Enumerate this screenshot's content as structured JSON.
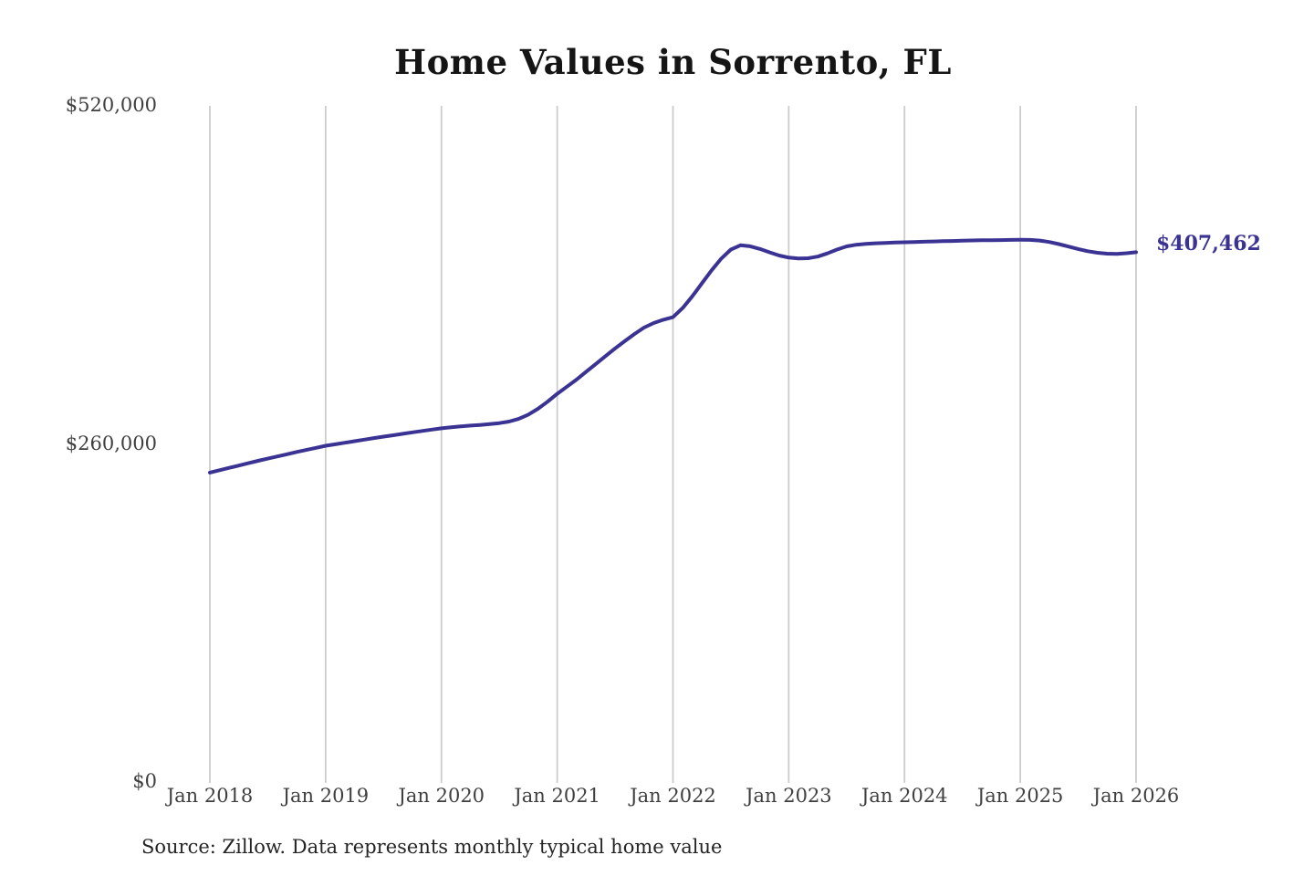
{
  "title": "Home Values in Sorrento, FL",
  "source_note": "Source: Zillow. Data represents monthly typical home value",
  "colors": {
    "line": "#3a3393",
    "grid": "#cccccc",
    "tick_text": "#3f3f3f",
    "title_text": "#151515",
    "end_label": "#3a3393",
    "background": "#ffffff"
  },
  "chart_data": {
    "type": "line",
    "title": "Home Values in Sorrento, FL",
    "xlabel": "",
    "ylabel": "",
    "frequency": "monthly",
    "x_start": "Jan 2018",
    "x_end": "Jan 2026",
    "x_tick_labels": [
      "Jan 2018",
      "Jan 2019",
      "Jan 2020",
      "Jan 2021",
      "Jan 2022",
      "Jan 2023",
      "Jan 2024",
      "Jan 2025",
      "Jan 2026"
    ],
    "y_ticks": [
      {
        "label": "$520,000",
        "value": 520000
      },
      {
        "label": "$260,000",
        "value": 260000
      },
      {
        "label": "$0",
        "value": 0
      }
    ],
    "ylim": [
      0,
      520000
    ],
    "grid": "vertical-only",
    "legend": "none",
    "end_label": "$407,462",
    "end_value": 407462,
    "series": [
      {
        "name": "Typical home value",
        "values": [
          238000,
          239800,
          241600,
          243400,
          245200,
          247000,
          248700,
          250400,
          252100,
          253800,
          255400,
          257000,
          258600,
          259700,
          260900,
          262100,
          263300,
          264500,
          265600,
          266700,
          267800,
          268900,
          270000,
          271000,
          272000,
          272800,
          273500,
          274100,
          274600,
          275200,
          276000,
          277200,
          279200,
          282500,
          287000,
          292500,
          298500,
          304000,
          309500,
          315500,
          321500,
          327500,
          333500,
          339000,
          344500,
          349500,
          353000,
          355500,
          357500,
          364500,
          373500,
          383500,
          393500,
          402500,
          409500,
          412800,
          412000,
          410000,
          407400,
          404900,
          403300,
          402600,
          402800,
          404100,
          406500,
          409500,
          411900,
          413200,
          413800,
          414300,
          414600,
          414900,
          415100,
          415300,
          415500,
          415700,
          415900,
          416100,
          416300,
          416500,
          416600,
          416700,
          416800,
          416900,
          417000,
          416900,
          416400,
          415300,
          413700,
          411800,
          409900,
          408200,
          407000,
          406300,
          406200,
          406700,
          407462
        ]
      }
    ]
  }
}
